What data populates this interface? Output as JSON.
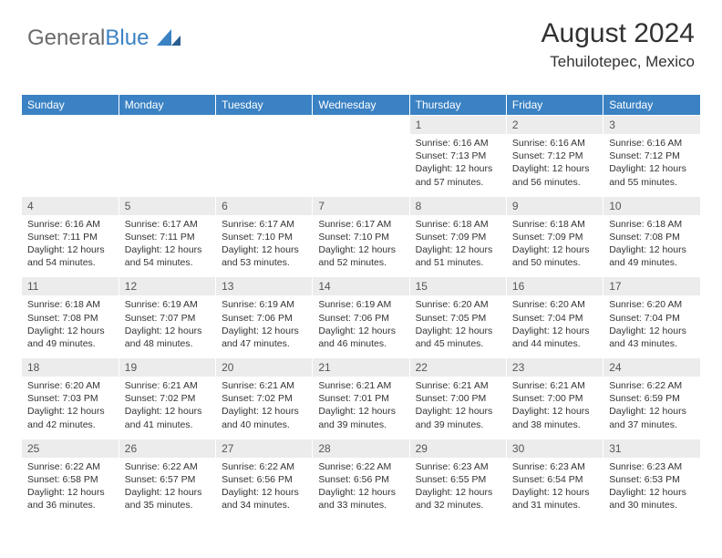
{
  "logo": {
    "text1": "General",
    "text2": "Blue"
  },
  "header": {
    "title": "August 2024",
    "location": "Tehuilotepec, Mexico"
  },
  "day_headers": [
    "Sunday",
    "Monday",
    "Tuesday",
    "Wednesday",
    "Thursday",
    "Friday",
    "Saturday"
  ],
  "colors": {
    "header_bg": "#3b82c4",
    "header_fg": "#ffffff",
    "daynum_bg": "#ececec",
    "text": "#333333",
    "logo_gray": "#6b6b6b",
    "logo_blue": "#3b82c4"
  },
  "weeks": [
    {
      "nums": [
        "",
        "",
        "",
        "",
        "1",
        "2",
        "3"
      ],
      "cells": [
        null,
        null,
        null,
        null,
        {
          "sr": "6:16 AM",
          "ss": "7:13 PM",
          "dl": "12 hours and 57 minutes."
        },
        {
          "sr": "6:16 AM",
          "ss": "7:12 PM",
          "dl": "12 hours and 56 minutes."
        },
        {
          "sr": "6:16 AM",
          "ss": "7:12 PM",
          "dl": "12 hours and 55 minutes."
        }
      ]
    },
    {
      "nums": [
        "4",
        "5",
        "6",
        "7",
        "8",
        "9",
        "10"
      ],
      "cells": [
        {
          "sr": "6:16 AM",
          "ss": "7:11 PM",
          "dl": "12 hours and 54 minutes."
        },
        {
          "sr": "6:17 AM",
          "ss": "7:11 PM",
          "dl": "12 hours and 54 minutes."
        },
        {
          "sr": "6:17 AM",
          "ss": "7:10 PM",
          "dl": "12 hours and 53 minutes."
        },
        {
          "sr": "6:17 AM",
          "ss": "7:10 PM",
          "dl": "12 hours and 52 minutes."
        },
        {
          "sr": "6:18 AM",
          "ss": "7:09 PM",
          "dl": "12 hours and 51 minutes."
        },
        {
          "sr": "6:18 AM",
          "ss": "7:09 PM",
          "dl": "12 hours and 50 minutes."
        },
        {
          "sr": "6:18 AM",
          "ss": "7:08 PM",
          "dl": "12 hours and 49 minutes."
        }
      ]
    },
    {
      "nums": [
        "11",
        "12",
        "13",
        "14",
        "15",
        "16",
        "17"
      ],
      "cells": [
        {
          "sr": "6:18 AM",
          "ss": "7:08 PM",
          "dl": "12 hours and 49 minutes."
        },
        {
          "sr": "6:19 AM",
          "ss": "7:07 PM",
          "dl": "12 hours and 48 minutes."
        },
        {
          "sr": "6:19 AM",
          "ss": "7:06 PM",
          "dl": "12 hours and 47 minutes."
        },
        {
          "sr": "6:19 AM",
          "ss": "7:06 PM",
          "dl": "12 hours and 46 minutes."
        },
        {
          "sr": "6:20 AM",
          "ss": "7:05 PM",
          "dl": "12 hours and 45 minutes."
        },
        {
          "sr": "6:20 AM",
          "ss": "7:04 PM",
          "dl": "12 hours and 44 minutes."
        },
        {
          "sr": "6:20 AM",
          "ss": "7:04 PM",
          "dl": "12 hours and 43 minutes."
        }
      ]
    },
    {
      "nums": [
        "18",
        "19",
        "20",
        "21",
        "22",
        "23",
        "24"
      ],
      "cells": [
        {
          "sr": "6:20 AM",
          "ss": "7:03 PM",
          "dl": "12 hours and 42 minutes."
        },
        {
          "sr": "6:21 AM",
          "ss": "7:02 PM",
          "dl": "12 hours and 41 minutes."
        },
        {
          "sr": "6:21 AM",
          "ss": "7:02 PM",
          "dl": "12 hours and 40 minutes."
        },
        {
          "sr": "6:21 AM",
          "ss": "7:01 PM",
          "dl": "12 hours and 39 minutes."
        },
        {
          "sr": "6:21 AM",
          "ss": "7:00 PM",
          "dl": "12 hours and 39 minutes."
        },
        {
          "sr": "6:21 AM",
          "ss": "7:00 PM",
          "dl": "12 hours and 38 minutes."
        },
        {
          "sr": "6:22 AM",
          "ss": "6:59 PM",
          "dl": "12 hours and 37 minutes."
        }
      ]
    },
    {
      "nums": [
        "25",
        "26",
        "27",
        "28",
        "29",
        "30",
        "31"
      ],
      "cells": [
        {
          "sr": "6:22 AM",
          "ss": "6:58 PM",
          "dl": "12 hours and 36 minutes."
        },
        {
          "sr": "6:22 AM",
          "ss": "6:57 PM",
          "dl": "12 hours and 35 minutes."
        },
        {
          "sr": "6:22 AM",
          "ss": "6:56 PM",
          "dl": "12 hours and 34 minutes."
        },
        {
          "sr": "6:22 AM",
          "ss": "6:56 PM",
          "dl": "12 hours and 33 minutes."
        },
        {
          "sr": "6:23 AM",
          "ss": "6:55 PM",
          "dl": "12 hours and 32 minutes."
        },
        {
          "sr": "6:23 AM",
          "ss": "6:54 PM",
          "dl": "12 hours and 31 minutes."
        },
        {
          "sr": "6:23 AM",
          "ss": "6:53 PM",
          "dl": "12 hours and 30 minutes."
        }
      ]
    }
  ],
  "labels": {
    "sunrise": "Sunrise:",
    "sunset": "Sunset:",
    "daylight": "Daylight:"
  }
}
